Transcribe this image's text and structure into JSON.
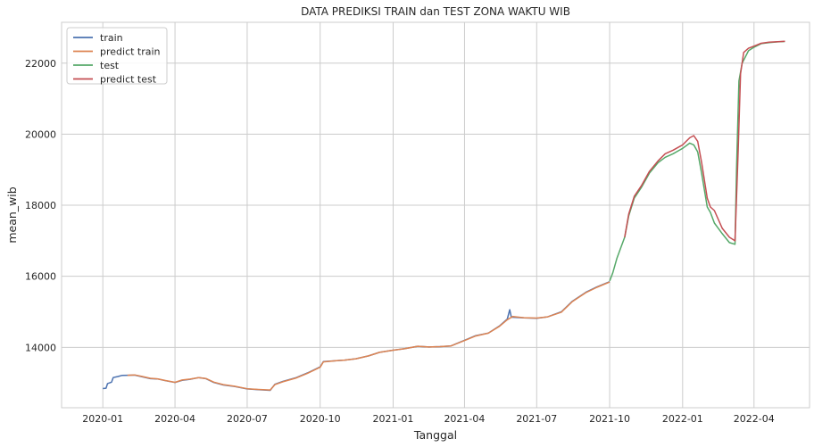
{
  "chart_data": {
    "type": "line",
    "title": "DATA PREDIKSI TRAIN dan TEST ZONA WAKTU WIB",
    "xlabel": "Tanggal",
    "ylabel": "mean_wib",
    "xlim": [
      "2019-11-10",
      "2022-06-10"
    ],
    "ylim": [
      12300,
      23150
    ],
    "xticks": [
      {
        "value": "2020-01-01",
        "label": "2020-01"
      },
      {
        "value": "2020-04-01",
        "label": "2020-04"
      },
      {
        "value": "2020-07-01",
        "label": "2020-07"
      },
      {
        "value": "2020-10-01",
        "label": "2020-10"
      },
      {
        "value": "2021-01-01",
        "label": "2021-01"
      },
      {
        "value": "2021-04-01",
        "label": "2021-04"
      },
      {
        "value": "2021-07-01",
        "label": "2021-07"
      },
      {
        "value": "2021-10-01",
        "label": "2021-10"
      },
      {
        "value": "2022-01-01",
        "label": "2022-01"
      },
      {
        "value": "2022-04-01",
        "label": "2022-04"
      }
    ],
    "yticks": [
      14000,
      16000,
      18000,
      20000,
      22000
    ],
    "grid": true,
    "legend_position": "top-left",
    "series": [
      {
        "name": "train",
        "color": "#4c72b0",
        "points": [
          [
            "2020-01-01",
            12840
          ],
          [
            "2020-01-05",
            12850
          ],
          [
            "2020-01-07",
            12980
          ],
          [
            "2020-01-12",
            13020
          ],
          [
            "2020-01-14",
            13150
          ],
          [
            "2020-01-20",
            13180
          ],
          [
            "2020-01-25",
            13210
          ],
          [
            "2020-02-01",
            13215
          ],
          [
            "2020-02-10",
            13220
          ],
          [
            "2020-02-20",
            13170
          ],
          [
            "2020-03-01",
            13120
          ],
          [
            "2020-03-10",
            13110
          ],
          [
            "2020-03-20",
            13060
          ],
          [
            "2020-04-01",
            13010
          ],
          [
            "2020-04-10",
            13070
          ],
          [
            "2020-04-20",
            13100
          ],
          [
            "2020-05-01",
            13150
          ],
          [
            "2020-05-10",
            13120
          ],
          [
            "2020-05-20",
            13010
          ],
          [
            "2020-06-01",
            12940
          ],
          [
            "2020-06-15",
            12900
          ],
          [
            "2020-07-01",
            12830
          ],
          [
            "2020-07-15",
            12810
          ],
          [
            "2020-07-30",
            12790
          ],
          [
            "2020-08-05",
            12960
          ],
          [
            "2020-08-15",
            13040
          ],
          [
            "2020-09-01",
            13150
          ],
          [
            "2020-09-15",
            13280
          ],
          [
            "2020-10-01",
            13450
          ],
          [
            "2020-10-05",
            13600
          ],
          [
            "2020-10-20",
            13620
          ],
          [
            "2020-11-01",
            13640
          ],
          [
            "2020-11-15",
            13680
          ],
          [
            "2020-12-01",
            13760
          ],
          [
            "2020-12-15",
            13860
          ],
          [
            "2021-01-01",
            13920
          ],
          [
            "2021-01-15",
            13960
          ],
          [
            "2021-02-01",
            14030
          ],
          [
            "2021-02-15",
            14010
          ],
          [
            "2021-03-01",
            14020
          ],
          [
            "2021-03-15",
            14040
          ],
          [
            "2021-04-01",
            14200
          ],
          [
            "2021-04-15",
            14330
          ],
          [
            "2021-05-01",
            14400
          ],
          [
            "2021-05-15",
            14600
          ],
          [
            "2021-05-25",
            14800
          ],
          [
            "2021-05-28",
            15060
          ],
          [
            "2021-05-30",
            14850
          ],
          [
            "2021-06-15",
            14830
          ],
          [
            "2021-07-01",
            14820
          ],
          [
            "2021-07-15",
            14860
          ],
          [
            "2021-08-01",
            15000
          ],
          [
            "2021-08-15",
            15300
          ],
          [
            "2021-09-01",
            15550
          ],
          [
            "2021-09-15",
            15700
          ],
          [
            "2021-10-01",
            15850
          ]
        ]
      },
      {
        "name": "predict train",
        "color": "#dd8452",
        "points": [
          [
            "2020-02-01",
            13215
          ],
          [
            "2020-02-10",
            13225
          ],
          [
            "2020-02-20",
            13180
          ],
          [
            "2020-03-01",
            13130
          ],
          [
            "2020-03-10",
            13115
          ],
          [
            "2020-03-20",
            13065
          ],
          [
            "2020-04-01",
            13015
          ],
          [
            "2020-04-10",
            13080
          ],
          [
            "2020-04-20",
            13105
          ],
          [
            "2020-05-01",
            13150
          ],
          [
            "2020-05-10",
            13125
          ],
          [
            "2020-05-20",
            13020
          ],
          [
            "2020-06-01",
            12950
          ],
          [
            "2020-06-15",
            12905
          ],
          [
            "2020-07-01",
            12835
          ],
          [
            "2020-07-15",
            12815
          ],
          [
            "2020-07-30",
            12800
          ],
          [
            "2020-08-05",
            12950
          ],
          [
            "2020-08-15",
            13030
          ],
          [
            "2020-09-01",
            13140
          ],
          [
            "2020-09-15",
            13270
          ],
          [
            "2020-10-01",
            13440
          ],
          [
            "2020-10-05",
            13590
          ],
          [
            "2020-10-20",
            13620
          ],
          [
            "2020-11-01",
            13640
          ],
          [
            "2020-11-15",
            13680
          ],
          [
            "2020-12-01",
            13760
          ],
          [
            "2020-12-15",
            13860
          ],
          [
            "2021-01-01",
            13920
          ],
          [
            "2021-01-15",
            13960
          ],
          [
            "2021-02-01",
            14030
          ],
          [
            "2021-02-15",
            14010
          ],
          [
            "2021-03-01",
            14020
          ],
          [
            "2021-03-15",
            14040
          ],
          [
            "2021-04-01",
            14190
          ],
          [
            "2021-04-15",
            14320
          ],
          [
            "2021-05-01",
            14400
          ],
          [
            "2021-05-15",
            14590
          ],
          [
            "2021-05-25",
            14780
          ],
          [
            "2021-06-01",
            14870
          ],
          [
            "2021-06-15",
            14835
          ],
          [
            "2021-07-01",
            14825
          ],
          [
            "2021-07-15",
            14860
          ],
          [
            "2021-08-01",
            14990
          ],
          [
            "2021-08-15",
            15290
          ],
          [
            "2021-09-01",
            15540
          ],
          [
            "2021-09-15",
            15690
          ],
          [
            "2021-10-01",
            15840
          ]
        ]
      },
      {
        "name": "test",
        "color": "#55a868",
        "points": [
          [
            "2021-10-01",
            15870
          ],
          [
            "2021-10-05",
            16100
          ],
          [
            "2021-10-10",
            16500
          ],
          [
            "2021-10-15",
            16800
          ],
          [
            "2021-10-20",
            17100
          ],
          [
            "2021-10-25",
            17700
          ],
          [
            "2021-11-01",
            18200
          ],
          [
            "2021-11-10",
            18500
          ],
          [
            "2021-11-20",
            18900
          ],
          [
            "2021-12-01",
            19200
          ],
          [
            "2021-12-10",
            19350
          ],
          [
            "2021-12-20",
            19450
          ],
          [
            "2022-01-01",
            19600
          ],
          [
            "2022-01-10",
            19750
          ],
          [
            "2022-01-15",
            19700
          ],
          [
            "2022-01-20",
            19500
          ],
          [
            "2022-01-25",
            18900
          ],
          [
            "2022-02-01",
            17950
          ],
          [
            "2022-02-05",
            17800
          ],
          [
            "2022-02-10",
            17500
          ],
          [
            "2022-02-20",
            17200
          ],
          [
            "2022-03-01",
            16950
          ],
          [
            "2022-03-08",
            16900
          ],
          [
            "2022-03-10",
            19000
          ],
          [
            "2022-03-13",
            21500
          ],
          [
            "2022-03-17",
            22000
          ],
          [
            "2022-03-25",
            22350
          ],
          [
            "2022-04-01",
            22450
          ],
          [
            "2022-04-10",
            22550
          ],
          [
            "2022-04-20",
            22580
          ],
          [
            "2022-05-01",
            22600
          ],
          [
            "2022-05-10",
            22610
          ]
        ]
      },
      {
        "name": "predict test",
        "color": "#c44e52",
        "points": [
          [
            "2021-10-20",
            17100
          ],
          [
            "2021-10-25",
            17750
          ],
          [
            "2021-11-01",
            18250
          ],
          [
            "2021-11-10",
            18550
          ],
          [
            "2021-11-20",
            18950
          ],
          [
            "2021-12-01",
            19250
          ],
          [
            "2021-12-10",
            19450
          ],
          [
            "2021-12-20",
            19550
          ],
          [
            "2022-01-01",
            19700
          ],
          [
            "2022-01-10",
            19900
          ],
          [
            "2022-01-15",
            19960
          ],
          [
            "2022-01-20",
            19800
          ],
          [
            "2022-01-25",
            19200
          ],
          [
            "2022-02-01",
            18200
          ],
          [
            "2022-02-05",
            17950
          ],
          [
            "2022-02-10",
            17850
          ],
          [
            "2022-02-20",
            17350
          ],
          [
            "2022-03-01",
            17100
          ],
          [
            "2022-03-08",
            17000
          ],
          [
            "2022-03-12",
            19500
          ],
          [
            "2022-03-15",
            21700
          ],
          [
            "2022-03-19",
            22300
          ],
          [
            "2022-03-25",
            22420
          ],
          [
            "2022-04-01",
            22480
          ],
          [
            "2022-04-10",
            22560
          ],
          [
            "2022-04-20",
            22590
          ],
          [
            "2022-05-01",
            22605
          ],
          [
            "2022-05-10",
            22615
          ]
        ]
      }
    ]
  }
}
